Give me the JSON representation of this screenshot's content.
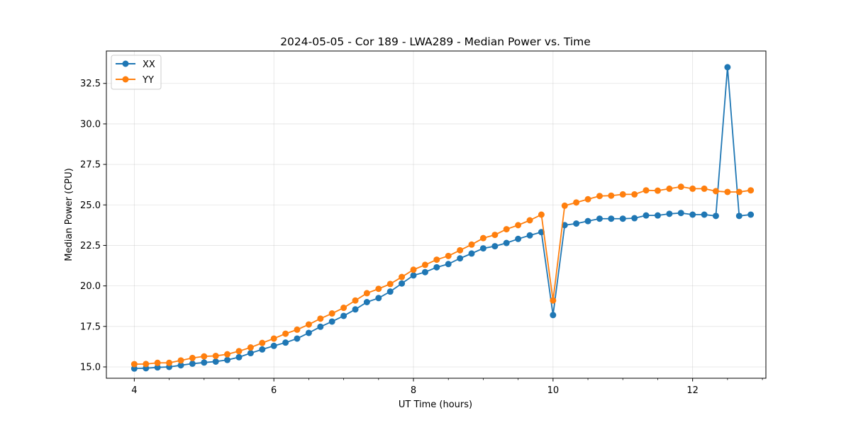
{
  "chart_data": {
    "type": "line",
    "title": "2024-05-05 - Cor 189 - LWA289 - Median Power vs. Time",
    "xlabel": "UT Time (hours)",
    "ylabel": "Median Power (CPU)",
    "xlim": [
      3.6,
      13.05
    ],
    "ylim": [
      14.3,
      34.5
    ],
    "xticks": [
      4,
      6,
      8,
      10,
      12
    ],
    "xtick_labels": [
      "4",
      "6",
      "8",
      "10",
      "12"
    ],
    "yticks": [
      15.0,
      17.5,
      20.0,
      22.5,
      25.0,
      27.5,
      30.0,
      32.5
    ],
    "ytick_labels": [
      "15.0",
      "17.5",
      "20.0",
      "22.5",
      "25.0",
      "27.5",
      "30.0",
      "32.5"
    ],
    "grid": true,
    "legend_position": "top-left",
    "x": [
      4.0,
      4.167,
      4.333,
      4.5,
      4.667,
      4.833,
      5.0,
      5.167,
      5.333,
      5.5,
      5.667,
      5.833,
      6.0,
      6.167,
      6.333,
      6.5,
      6.667,
      6.833,
      7.0,
      7.167,
      7.333,
      7.5,
      7.667,
      7.833,
      8.0,
      8.167,
      8.333,
      8.5,
      8.667,
      8.833,
      9.0,
      9.167,
      9.333,
      9.5,
      9.667,
      9.833,
      10.0,
      10.167,
      10.333,
      10.5,
      10.667,
      10.833,
      11.0,
      11.167,
      11.333,
      11.5,
      11.667,
      11.833,
      12.0,
      12.167,
      12.333,
      12.5,
      12.667,
      12.833
    ],
    "series": [
      {
        "name": "XX",
        "color": "#1f77b4",
        "values": [
          14.9,
          14.92,
          14.97,
          15.0,
          15.1,
          15.2,
          15.27,
          15.33,
          15.43,
          15.6,
          15.85,
          16.08,
          16.3,
          16.5,
          16.75,
          17.1,
          17.48,
          17.8,
          18.15,
          18.55,
          19.0,
          19.25,
          19.65,
          20.15,
          20.65,
          20.85,
          21.15,
          21.35,
          21.7,
          22.0,
          22.32,
          22.45,
          22.65,
          22.9,
          23.12,
          23.32,
          18.2,
          23.75,
          23.85,
          24.0,
          24.15,
          24.15,
          24.15,
          24.18,
          24.35,
          24.35,
          24.45,
          24.5,
          24.4,
          24.4,
          24.32,
          33.5,
          24.32,
          24.4
        ]
      },
      {
        "name": "YY",
        "color": "#ff7f0e",
        "values": [
          15.17,
          15.18,
          15.25,
          15.25,
          15.4,
          15.55,
          15.65,
          15.68,
          15.78,
          15.97,
          16.2,
          16.48,
          16.75,
          17.05,
          17.3,
          17.62,
          17.98,
          18.3,
          18.65,
          19.1,
          19.55,
          19.82,
          20.12,
          20.55,
          21.0,
          21.3,
          21.62,
          21.85,
          22.2,
          22.55,
          22.95,
          23.15,
          23.5,
          23.75,
          24.05,
          24.4,
          19.1,
          24.95,
          25.15,
          25.35,
          25.55,
          25.57,
          25.65,
          25.65,
          25.9,
          25.88,
          26.0,
          26.12,
          26.0,
          26.0,
          25.85,
          25.8,
          25.8,
          25.9
        ]
      }
    ]
  }
}
